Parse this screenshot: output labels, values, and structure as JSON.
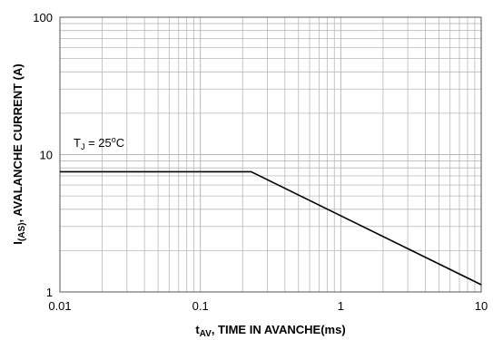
{
  "chart_data": {
    "type": "line",
    "x_scale": "log",
    "y_scale": "log",
    "xlim": [
      0.01,
      10
    ],
    "ylim": [
      1,
      100
    ],
    "grid": true,
    "x_ticks": [
      {
        "value": 0.01,
        "label": "0.01"
      },
      {
        "value": 0.1,
        "label": "0.1"
      },
      {
        "value": 1,
        "label": "1"
      },
      {
        "value": 10,
        "label": "10"
      }
    ],
    "y_ticks": [
      {
        "value": 1,
        "label": "1"
      },
      {
        "value": 10,
        "label": "10"
      },
      {
        "value": 100,
        "label": "100"
      }
    ],
    "xlabel": {
      "main": "t",
      "sub": "AV",
      "rest": ", TIME IN AVANCHE(ms)"
    },
    "ylabel": {
      "main": "I",
      "sub": "(AS)",
      "rest": ", AVALANCHE CURRENT (A)"
    },
    "annotation": {
      "prefix": "T",
      "sub": "J",
      "mid": " = 25",
      "sup": "o",
      "suffix": "C"
    },
    "series": [
      {
        "x": [
          0.01,
          0.23,
          10
        ],
        "y": [
          7.5,
          7.5,
          1.13
        ]
      }
    ],
    "colors": {
      "line": "#000000",
      "grid": "#b8b8b8",
      "frame": "#555555"
    }
  }
}
